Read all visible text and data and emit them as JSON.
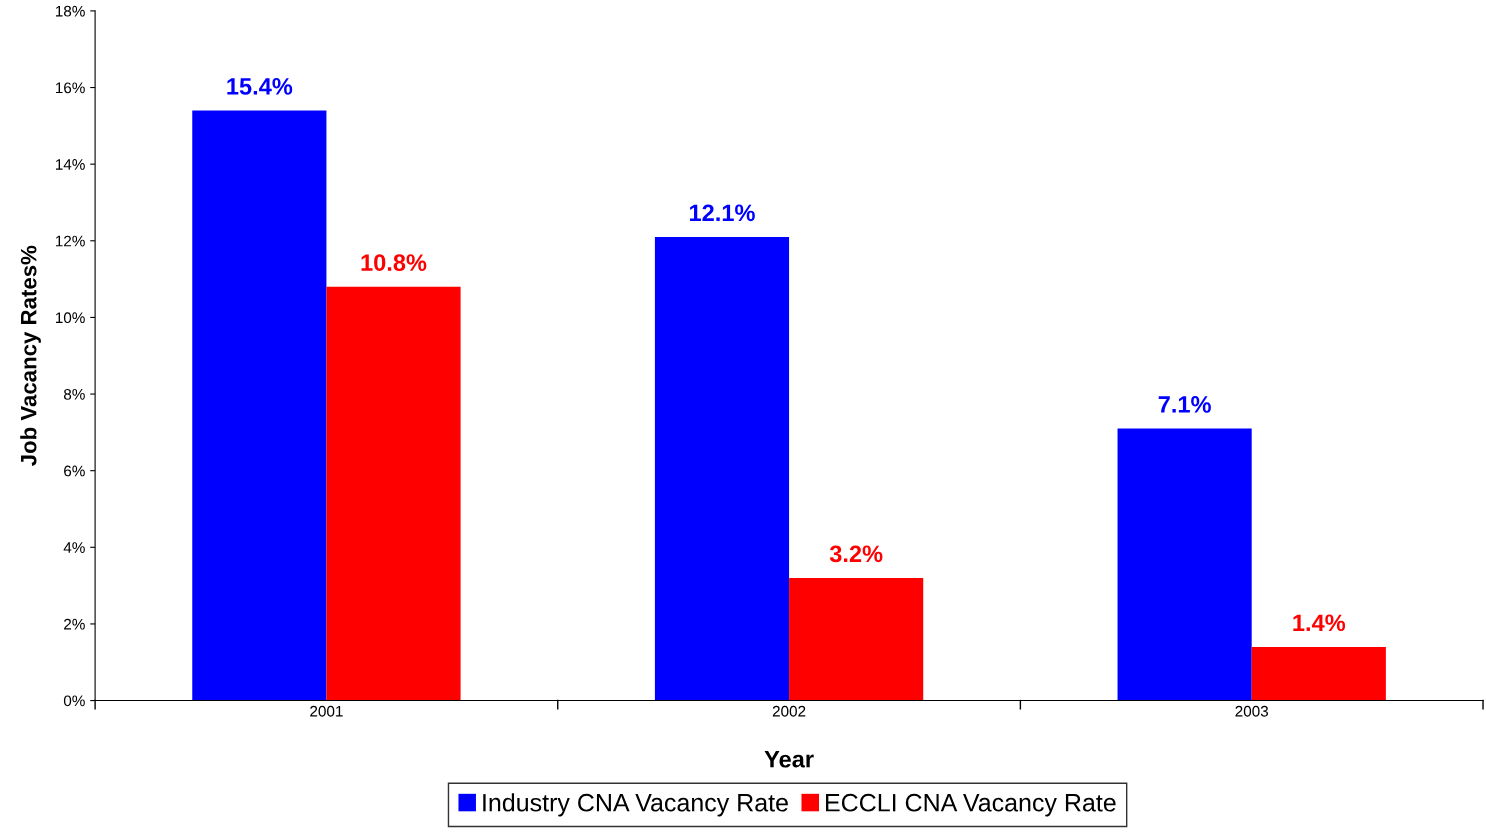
{
  "chart_data": {
    "type": "bar",
    "xlabel": "Year",
    "ylabel": "Job Vacancy Rates%",
    "categories": [
      "2001",
      "2002",
      "2003"
    ],
    "series": [
      {
        "name": "Industry CNA Vacancy Rate",
        "color": "#0000ff",
        "values": [
          15.4,
          12.1,
          7.1
        ],
        "value_labels": [
          "15.4%",
          "12.1%",
          "7.1%"
        ]
      },
      {
        "name": "ECCLI CNA Vacancy Rate",
        "color": "#ff0000",
        "values": [
          10.8,
          3.2,
          1.4
        ],
        "value_labels": [
          "10.8%",
          "3.2%",
          "1.4%"
        ]
      }
    ],
    "ylim": [
      0,
      18
    ],
    "yticks": [
      {
        "value": 0,
        "label": "0%"
      },
      {
        "value": 2,
        "label": "2%"
      },
      {
        "value": 4,
        "label": "4%"
      },
      {
        "value": 6,
        "label": "6%"
      },
      {
        "value": 8,
        "label": "8%"
      },
      {
        "value": 10,
        "label": "10%"
      },
      {
        "value": 12,
        "label": "12%"
      },
      {
        "value": 14,
        "label": "14%"
      },
      {
        "value": 16,
        "label": "16%"
      },
      {
        "value": 18,
        "label": "18%"
      }
    ],
    "grid": false,
    "legend": "bottom"
  }
}
